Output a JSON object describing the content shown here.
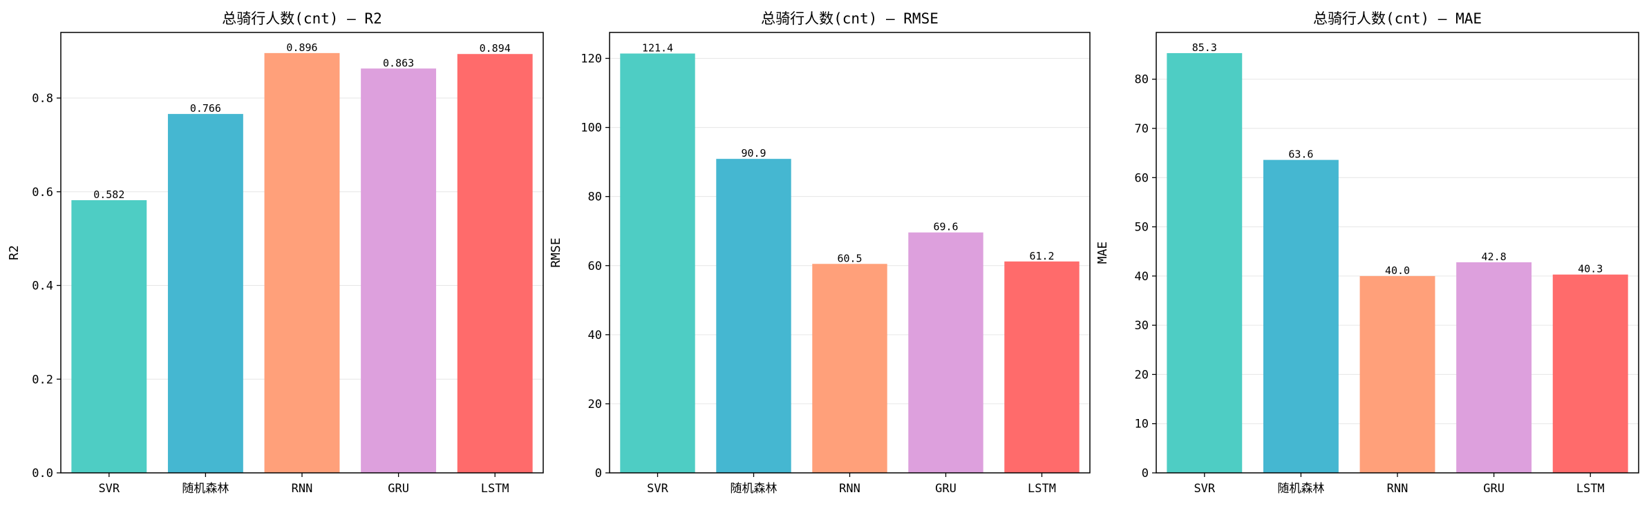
{
  "chart_data": [
    {
      "type": "bar",
      "title": "总骑行人数(cnt) — R2",
      "xlabel": "",
      "ylabel": "R2",
      "categories": [
        "SVR",
        "随机森林",
        "RNN",
        "GRU",
        "LSTM"
      ],
      "values": [
        0.582,
        0.766,
        0.896,
        0.863,
        0.894
      ],
      "value_labels": [
        "0.582",
        "0.766",
        "0.896",
        "0.863",
        "0.894"
      ],
      "ylim": [
        0,
        0.94
      ],
      "yticks": [
        0.0,
        0.2,
        0.4,
        0.6,
        0.8
      ],
      "ytick_labels": [
        "0.0",
        "0.2",
        "0.4",
        "0.6",
        "0.8"
      ],
      "grid": true
    },
    {
      "type": "bar",
      "title": "总骑行人数(cnt) — RMSE",
      "xlabel": "",
      "ylabel": "RMSE",
      "categories": [
        "SVR",
        "随机森林",
        "RNN",
        "GRU",
        "LSTM"
      ],
      "values": [
        121.4,
        90.9,
        60.5,
        69.6,
        61.2
      ],
      "value_labels": [
        "121.4",
        "90.9",
        "60.5",
        "69.6",
        "61.2"
      ],
      "ylim": [
        0,
        127.5
      ],
      "yticks": [
        0,
        20,
        40,
        60,
        80,
        100,
        120
      ],
      "ytick_labels": [
        "0",
        "20",
        "40",
        "60",
        "80",
        "100",
        "120"
      ],
      "grid": true
    },
    {
      "type": "bar",
      "title": "总骑行人数(cnt) — MAE",
      "xlabel": "",
      "ylabel": "MAE",
      "categories": [
        "SVR",
        "随机森林",
        "RNN",
        "GRU",
        "LSTM"
      ],
      "values": [
        85.3,
        63.6,
        40.0,
        42.8,
        40.3
      ],
      "value_labels": [
        "85.3",
        "63.6",
        "40.0",
        "42.8",
        "40.3"
      ],
      "ylim": [
        0,
        89.5
      ],
      "yticks": [
        0,
        10,
        20,
        30,
        40,
        50,
        60,
        70,
        80
      ],
      "ytick_labels": [
        "0",
        "10",
        "20",
        "30",
        "40",
        "50",
        "60",
        "70",
        "80"
      ],
      "grid": true
    }
  ],
  "colors": {
    "bars": [
      "#4ecdc4",
      "#45b7d1",
      "#ffa07a",
      "#dda0dd",
      "#ff6b6b"
    ],
    "grid": "#e6e6e6",
    "axes": "#000000"
  }
}
